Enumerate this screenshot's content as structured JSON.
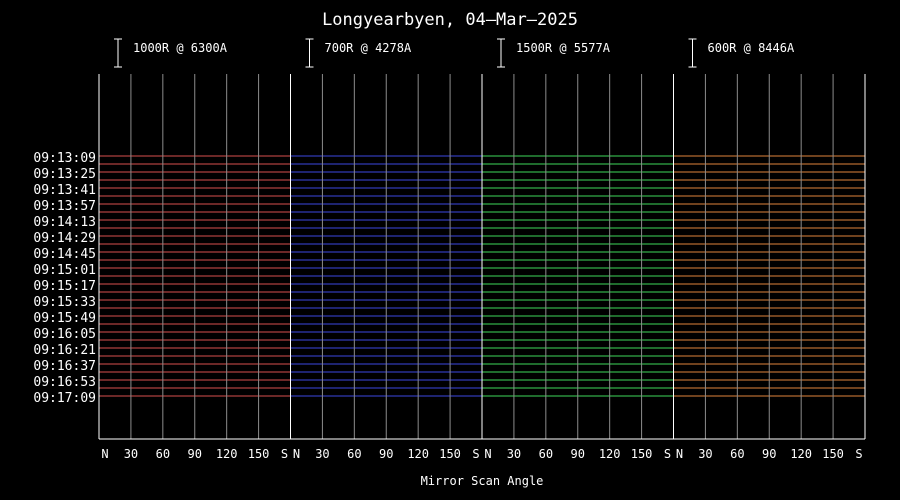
{
  "chart_data": {
    "type": "keogram",
    "title": "Longyearbyen, 04—Mar—2025",
    "xlabel": "Mirror Scan Angle",
    "x_ticks": [
      "N",
      "30",
      "60",
      "90",
      "120",
      "150",
      "S"
    ],
    "time_start_index": 5,
    "time_labels": [
      "09:13:09",
      "09:13:25",
      "09:13:41",
      "09:13:57",
      "09:14:13",
      "09:14:29",
      "09:14:45",
      "09:15:01",
      "09:15:17",
      "09:15:33",
      "09:15:49",
      "09:16:05",
      "09:16:21",
      "09:16:37",
      "09:16:53",
      "09:17:09"
    ],
    "channels": [
      {
        "scale": "1000R @ 6300A",
        "color": "#d8504e"
      },
      {
        "scale": "700R @ 4278A",
        "color": "#3c48e0"
      },
      {
        "scale": "1500R @ 5577A",
        "color": "#3ed85a"
      },
      {
        "scale": "600R @ 8446A",
        "color": "#e0843c"
      }
    ],
    "grid": true
  }
}
